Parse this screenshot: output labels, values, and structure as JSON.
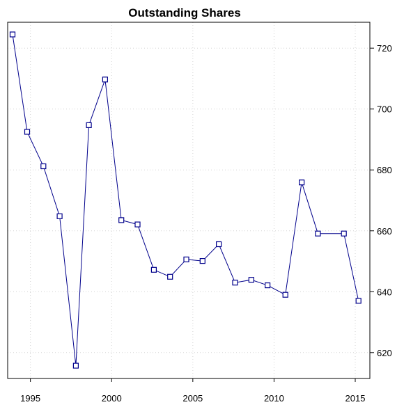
{
  "chart_data": {
    "type": "line",
    "title": "Outstanding Shares",
    "xlabel": "",
    "ylabel": "",
    "xlim": [
      1993.6,
      2015.9
    ],
    "ylim": [
      611.5,
      728.5
    ],
    "xticks": [
      1995,
      2000,
      2005,
      2010,
      2015
    ],
    "yticks": [
      620,
      640,
      660,
      680,
      700,
      720
    ],
    "y_axis_side": "right",
    "grid": true,
    "marker": "open-square",
    "series": [
      {
        "name": "",
        "color": "#00008b",
        "points": [
          {
            "x": 1993.9,
            "y": 724.5
          },
          {
            "x": 1994.8,
            "y": 692.5
          },
          {
            "x": 1995.8,
            "y": 681.2
          },
          {
            "x": 1996.8,
            "y": 664.8
          },
          {
            "x": 1997.8,
            "y": 615.7
          },
          {
            "x": 1998.6,
            "y": 694.7
          },
          {
            "x": 1999.6,
            "y": 709.7
          },
          {
            "x": 2000.6,
            "y": 663.5
          },
          {
            "x": 2001.6,
            "y": 662.1
          },
          {
            "x": 2002.6,
            "y": 647.2
          },
          {
            "x": 2003.6,
            "y": 644.9
          },
          {
            "x": 2004.6,
            "y": 650.6
          },
          {
            "x": 2005.6,
            "y": 650.1
          },
          {
            "x": 2006.6,
            "y": 655.6
          },
          {
            "x": 2007.6,
            "y": 643.0
          },
          {
            "x": 2008.6,
            "y": 643.9
          },
          {
            "x": 2009.6,
            "y": 642.1
          },
          {
            "x": 2010.7,
            "y": 639.0
          },
          {
            "x": 2011.7,
            "y": 675.9
          },
          {
            "x": 2012.7,
            "y": 659.1
          },
          {
            "x": 2014.3,
            "y": 659.1
          },
          {
            "x": 2015.2,
            "y": 637.0
          }
        ]
      }
    ],
    "colors": {
      "line": "#00008b",
      "marker": "#00008b",
      "grid": "#d3d3d3",
      "axis": "#000000"
    }
  }
}
